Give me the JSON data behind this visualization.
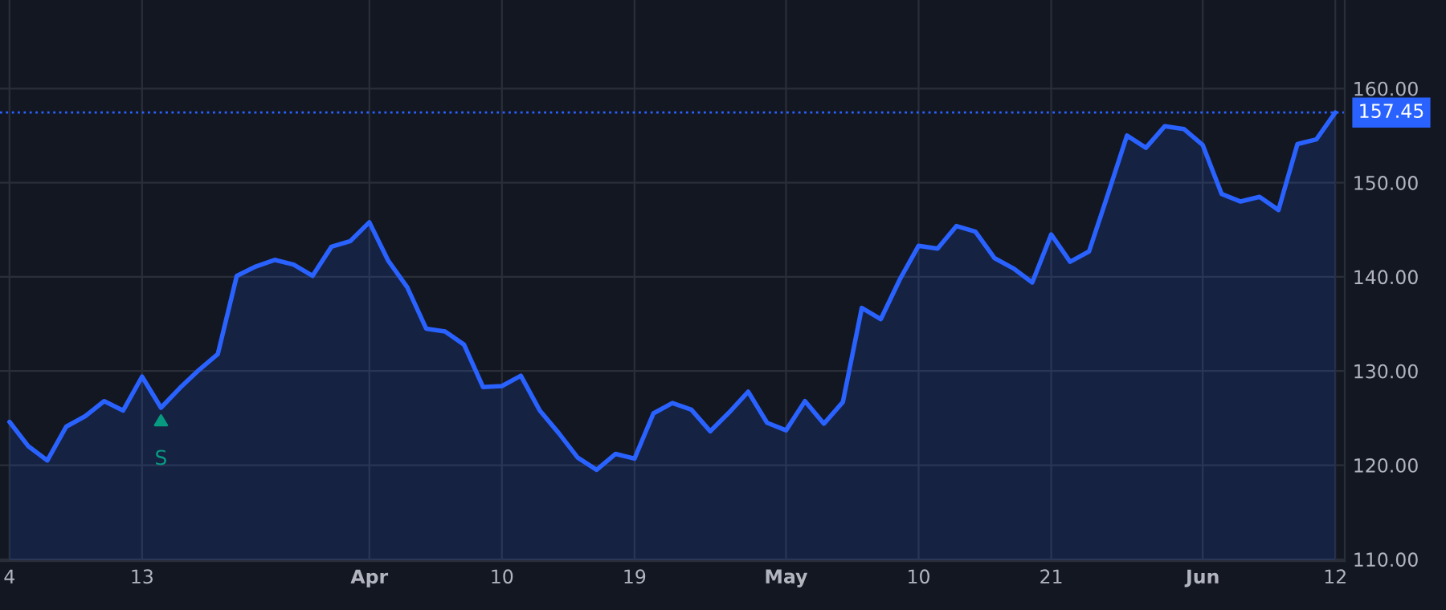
{
  "chart_data": {
    "type": "area",
    "categories": [
      "4",
      null,
      null,
      null,
      null,
      null,
      null,
      "13",
      null,
      null,
      null,
      null,
      null,
      null,
      null,
      null,
      null,
      null,
      null,
      "Apr",
      null,
      null,
      null,
      null,
      null,
      null,
      "10",
      null,
      null,
      null,
      null,
      null,
      null,
      "19",
      null,
      null,
      null,
      null,
      null,
      null,
      null,
      "May",
      null,
      null,
      null,
      null,
      null,
      null,
      "10",
      null,
      null,
      null,
      null,
      null,
      null,
      "21",
      null,
      null,
      null,
      null,
      null,
      null,
      null,
      "Jun",
      null,
      null,
      null,
      null,
      null,
      null,
      "12"
    ],
    "series": [
      {
        "color": "#2962ff",
        "values": [
          124.6,
          122.0,
          120.5,
          124.1,
          125.2,
          126.8,
          125.8,
          129.4,
          126.1,
          128.2,
          130.1,
          131.8,
          140.1,
          141.1,
          141.8,
          141.3,
          140.1,
          143.2,
          143.8,
          145.8,
          141.7,
          138.9,
          134.5,
          134.2,
          132.8,
          128.3,
          128.4,
          129.5,
          125.8,
          123.4,
          120.8,
          119.5,
          121.2,
          120.7,
          125.5,
          126.6,
          125.9,
          123.6,
          125.6,
          127.8,
          124.5,
          123.7,
          126.8,
          124.4,
          126.7,
          136.7,
          135.5,
          139.7,
          143.3,
          143.0,
          145.4,
          144.8,
          142.0,
          140.9,
          139.4,
          144.5,
          141.6,
          142.7,
          148.8,
          155.0,
          153.7,
          156.0,
          155.7,
          154.0,
          148.8,
          148.0,
          148.5,
          147.1,
          154.1,
          154.6,
          157.45
        ]
      }
    ],
    "ylim": [
      109.8,
      169.4
    ],
    "yticks": [
      {
        "value": 110,
        "label": "110.00"
      },
      {
        "value": 120,
        "label": "120.00"
      },
      {
        "value": 130,
        "label": "130.00"
      },
      {
        "value": 140,
        "label": "140.00"
      },
      {
        "value": 150,
        "label": "150.00"
      },
      {
        "value": 160,
        "label": "160.00"
      }
    ],
    "ref_lines": [
      {
        "axis": "y",
        "value": 157.45,
        "label": "157.45",
        "color": "#2962ff",
        "line_style": "dotted"
      }
    ],
    "annotations": [
      {
        "text": "S",
        "y": 126.1
      }
    ],
    "grid": true,
    "legend": false
  }
}
